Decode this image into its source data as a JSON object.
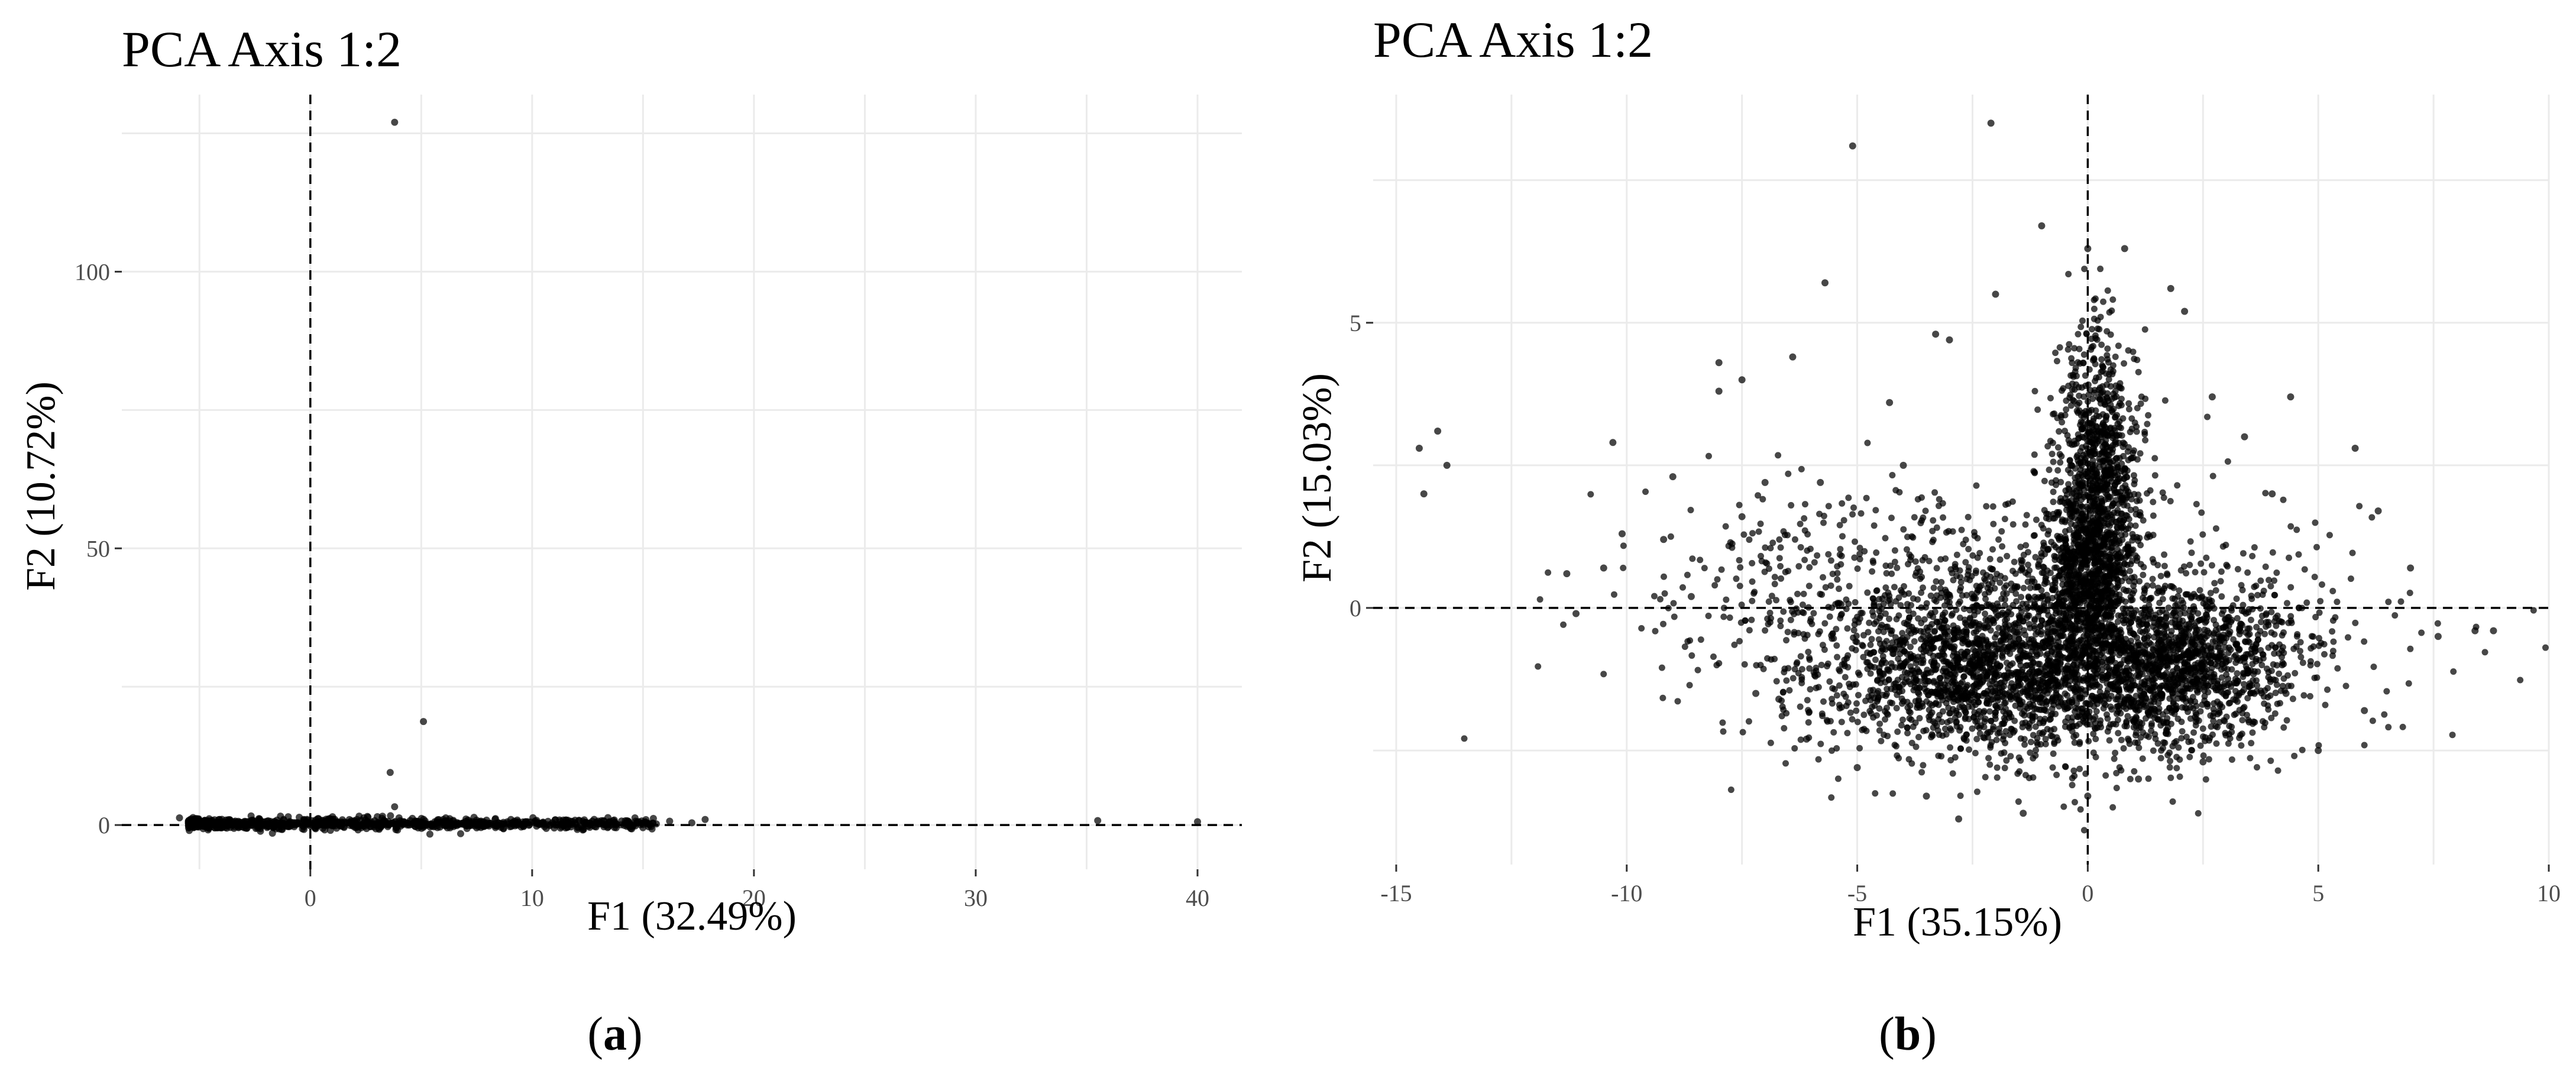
{
  "chart_data": [
    {
      "type": "scatter",
      "panel": "a",
      "title": "PCA Axis 1:2",
      "xlabel": "F1 (32.49%)",
      "ylabel": "F2 (10.72%)",
      "xlim": [
        -8.5,
        42
      ],
      "ylim": [
        -8,
        132
      ],
      "x_ticks": [
        0,
        10,
        20,
        30,
        40
      ],
      "x_tick_labels": [
        "0",
        "10",
        "20",
        "30",
        "40"
      ],
      "y_ticks": [
        0,
        50,
        100
      ],
      "y_tick_labels": [
        "0",
        "50",
        "100"
      ],
      "reference_lines": {
        "x": 0,
        "y": 0
      },
      "grid": true,
      "legend": "none",
      "points_shown": [
        [
          3.8,
          127
        ],
        [
          5.1,
          18.7
        ],
        [
          3.6,
          9.5
        ],
        [
          3.8,
          3.3
        ],
        [
          2.2,
          1.6
        ],
        [
          4.0,
          1.3
        ],
        [
          35.5,
          0.8
        ],
        [
          40.0,
          0.6
        ],
        [
          17.8,
          1.0
        ],
        [
          17.2,
          0.4
        ],
        [
          16.2,
          0.7
        ],
        [
          15.6,
          0.2
        ],
        [
          12.3,
          -0.6
        ],
        [
          11.8,
          0.1
        ],
        [
          -5.9,
          1.3
        ],
        [
          -5.4,
          0.9
        ],
        [
          -4.8,
          0.7
        ],
        [
          -4.2,
          0.6
        ],
        [
          -3.6,
          0.5
        ],
        [
          -3.0,
          0.4
        ],
        [
          -2.4,
          0.4
        ],
        [
          -1.8,
          0.3
        ],
        [
          -1.2,
          0.3
        ],
        [
          -0.6,
          0.4
        ],
        [
          0.0,
          0.4
        ],
        [
          0.6,
          0.5
        ],
        [
          1.2,
          0.5
        ],
        [
          1.8,
          0.4
        ],
        [
          2.4,
          0.3
        ],
        [
          3.0,
          0.3
        ],
        [
          3.6,
          0.2
        ],
        [
          4.2,
          0.2
        ],
        [
          4.8,
          0.1
        ],
        [
          5.4,
          0.1
        ],
        [
          6.0,
          0.0
        ],
        [
          6.6,
          -0.1
        ],
        [
          7.2,
          -0.1
        ],
        [
          7.8,
          -0.2
        ],
        [
          8.4,
          -0.2
        ],
        [
          9.0,
          -0.3
        ],
        [
          9.6,
          -0.2
        ],
        [
          10.2,
          -0.2
        ],
        [
          10.8,
          -0.1
        ],
        [
          11.4,
          -0.1
        ],
        [
          12.6,
          0.0
        ],
        [
          13.2,
          0.1
        ],
        [
          13.8,
          0.2
        ],
        [
          14.4,
          0.2
        ],
        [
          15.0,
          0.1
        ],
        [
          -4.5,
          0.1
        ],
        [
          -3.3,
          -0.1
        ],
        [
          -2.1,
          -0.1
        ],
        [
          -0.9,
          -0.2
        ],
        [
          0.3,
          -0.2
        ],
        [
          1.5,
          -0.3
        ],
        [
          2.7,
          -0.3
        ],
        [
          3.9,
          -0.4
        ],
        [
          5.1,
          -0.4
        ],
        [
          6.3,
          -0.5
        ],
        [
          7.5,
          -0.5
        ],
        [
          8.7,
          -0.6
        ],
        [
          -1.5,
          0.9
        ],
        [
          -0.3,
          1.0
        ],
        [
          0.9,
          1.1
        ],
        [
          2.1,
          1.0
        ],
        [
          3.3,
          0.9
        ],
        [
          4.5,
          0.8
        ],
        [
          5.7,
          0.6
        ],
        [
          6.9,
          0.4
        ],
        [
          8.1,
          0.3
        ],
        [
          9.3,
          0.2
        ],
        [
          10.5,
          0.1
        ],
        [
          1.0,
          1.5
        ],
        [
          -0.5,
          1.4
        ],
        [
          2.6,
          1.4
        ],
        [
          4.6,
          1.2
        ],
        [
          6.0,
          1.0
        ],
        [
          9.8,
          0.6
        ],
        [
          13.5,
          0.5
        ],
        [
          14.8,
          0.6
        ],
        [
          -2.6,
          0.9
        ],
        [
          -3.8,
          0.9
        ]
      ]
    },
    {
      "type": "scatter",
      "panel": "b",
      "title": "PCA Axis 1:2",
      "xlabel": "F1 (35.15%)",
      "ylabel": "F2 (15.03%)",
      "xlim": [
        -15.5,
        10
      ],
      "ylim": [
        -4.5,
        9
      ],
      "x_ticks": [
        -15,
        -10,
        -5,
        0,
        5,
        10
      ],
      "x_tick_labels": [
        "-15",
        "-10",
        "-5",
        "0",
        "5",
        "10"
      ],
      "y_ticks": [
        0,
        5
      ],
      "y_tick_labels": [
        "0",
        "5"
      ],
      "reference_lines": {
        "x": 0,
        "y": 0
      },
      "grid": true,
      "legend": "none",
      "points_shown": [
        [
          -2.1,
          8.5
        ],
        [
          -5.1,
          8.1
        ],
        [
          -1.0,
          6.7
        ],
        [
          0.0,
          6.3
        ],
        [
          0.8,
          6.3
        ],
        [
          -5.7,
          5.7
        ],
        [
          -2.0,
          5.5
        ],
        [
          -6.4,
          4.4
        ],
        [
          -8.0,
          4.3
        ],
        [
          -8.0,
          3.8
        ],
        [
          -7.5,
          4.0
        ],
        [
          -3.3,
          4.8
        ],
        [
          -3.0,
          4.7
        ],
        [
          -14.5,
          2.8
        ],
        [
          -14.1,
          3.1
        ],
        [
          -13.9,
          2.5
        ],
        [
          -14.4,
          2.0
        ],
        [
          -10.3,
          2.9
        ],
        [
          -9.0,
          2.3
        ],
        [
          -11.3,
          0.6
        ],
        [
          -11.1,
          -0.1
        ],
        [
          -10.1,
          1.3
        ],
        [
          -10.5,
          0.7
        ],
        [
          -9.2,
          1.2
        ],
        [
          -8.6,
          0.2
        ],
        [
          -7.5,
          1.6
        ],
        [
          -7.0,
          2.2
        ],
        [
          -6.7,
          -1.6
        ],
        [
          -6.1,
          -2.3
        ],
        [
          -7.2,
          -1.5
        ],
        [
          -5.8,
          2.2
        ],
        [
          -5.0,
          -2.8
        ],
        [
          -4.3,
          3.6
        ],
        [
          -4.0,
          2.5
        ],
        [
          -3.5,
          -3.3
        ],
        [
          -2.8,
          -3.7
        ],
        [
          -1.4,
          -3.6
        ],
        [
          0.0,
          -3.3
        ],
        [
          1.1,
          -3.0
        ],
        [
          1.8,
          5.6
        ],
        [
          2.1,
          5.2
        ],
        [
          2.7,
          3.7
        ],
        [
          3.4,
          3.0
        ],
        [
          4.0,
          2.0
        ],
        [
          4.4,
          3.7
        ],
        [
          5.8,
          2.8
        ],
        [
          6.3,
          1.7
        ],
        [
          7.0,
          0.7
        ],
        [
          7.6,
          -0.5
        ],
        [
          8.4,
          -0.4
        ],
        [
          8.8,
          -0.4
        ],
        [
          6.0,
          -1.8
        ],
        [
          5.0,
          -2.5
        ],
        [
          4.3,
          -1.5
        ],
        [
          3.5,
          -2.0
        ],
        [
          2.5,
          -2.7
        ],
        [
          1.7,
          -2.2
        ]
      ]
    }
  ],
  "captions": {
    "a": "a",
    "b": "b"
  }
}
